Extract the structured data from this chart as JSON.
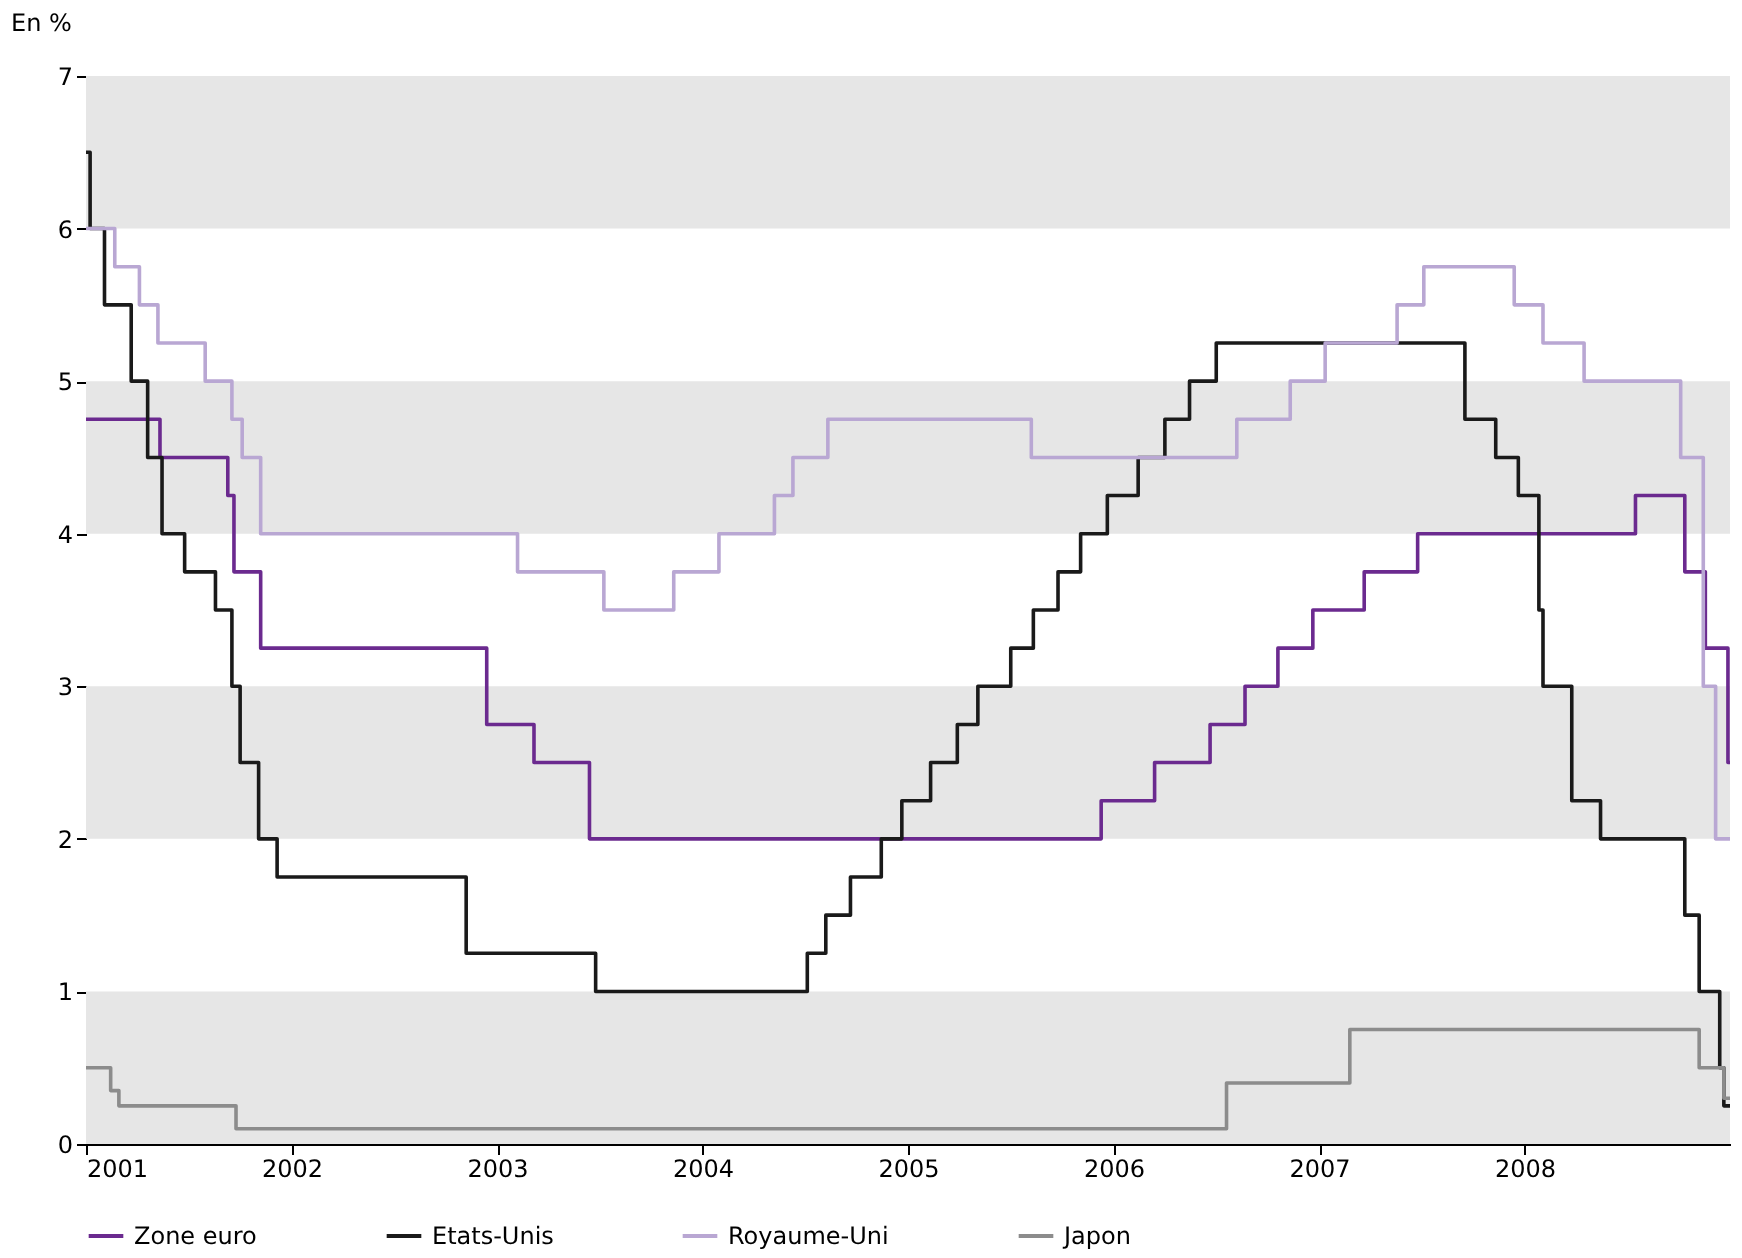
{
  "chart_data": {
    "type": "step",
    "ylabel": "En %",
    "xlim": [
      2001,
      2009
    ],
    "xticks": [
      2001,
      2002,
      2003,
      2004,
      2005,
      2006,
      2007,
      2008
    ],
    "ylim": [
      0,
      7
    ],
    "yticks": [
      0,
      1,
      2,
      3,
      4,
      5,
      6,
      7
    ],
    "grid": false,
    "legend": "bottom",
    "line_style": "solid",
    "marker": "none",
    "bands": [
      {
        "axis": "y",
        "from": 0,
        "to": 1,
        "color": "#e6e6e6"
      },
      {
        "axis": "y",
        "from": 2,
        "to": 3,
        "color": "#e6e6e6"
      },
      {
        "axis": "y",
        "from": 4,
        "to": 5,
        "color": "#e6e6e6"
      },
      {
        "axis": "y",
        "from": 6,
        "to": 7,
        "color": "#e6e6e6"
      }
    ],
    "series": [
      {
        "name": "Zone euro",
        "color": "#6b2a8f",
        "x": [
          2001,
          2001.36,
          2001.69,
          2001.72,
          2001.85,
          2002.95,
          2003.18,
          2003.45,
          2005.94,
          2006.2,
          2006.47,
          2006.64,
          2006.8,
          2006.97,
          2007.22,
          2007.48,
          2008.54,
          2008.78,
          2008.88,
          2008.99,
          2009
        ],
        "values": [
          4.75,
          4.5,
          4.25,
          3.75,
          3.25,
          2.75,
          2.5,
          2.0,
          2.25,
          2.5,
          2.75,
          3.0,
          3.25,
          3.5,
          3.75,
          4.0,
          4.25,
          3.75,
          3.25,
          2.5,
          2.5
        ]
      },
      {
        "name": "Etats-Unis",
        "color": "#1a1a1a",
        "x": [
          2001,
          2001.02,
          2001.09,
          2001.22,
          2001.3,
          2001.37,
          2001.48,
          2001.63,
          2001.71,
          2001.75,
          2001.84,
          2001.93,
          2002.85,
          2003.48,
          2004.51,
          2004.6,
          2004.72,
          2004.87,
          2004.97,
          2005.11,
          2005.24,
          2005.34,
          2005.5,
          2005.61,
          2005.73,
          2005.84,
          2005.97,
          2006.12,
          2006.25,
          2006.37,
          2006.5,
          2007.71,
          2007.86,
          2007.97,
          2008.07,
          2008.09,
          2008.23,
          2008.37,
          2008.78,
          2008.85,
          2008.95,
          2008.97,
          2009
        ],
        "values": [
          6.5,
          6.0,
          5.5,
          5.0,
          4.5,
          4.0,
          3.75,
          3.5,
          3.0,
          2.5,
          2.0,
          1.75,
          1.25,
          1.0,
          1.25,
          1.5,
          1.75,
          2.0,
          2.25,
          2.5,
          2.75,
          3.0,
          3.25,
          3.5,
          3.75,
          4.0,
          4.25,
          4.5,
          4.75,
          5.0,
          5.25,
          4.75,
          4.5,
          4.25,
          3.5,
          3.0,
          2.25,
          2.0,
          1.5,
          1.0,
          0.5,
          0.25,
          0.25
        ]
      },
      {
        "name": "Royaume-Uni",
        "color": "#b9a7d3",
        "x": [
          2001,
          2001.14,
          2001.26,
          2001.35,
          2001.58,
          2001.71,
          2001.76,
          2001.85,
          2003.1,
          2003.52,
          2003.86,
          2004.08,
          2004.35,
          2004.44,
          2004.61,
          2005.6,
          2006.6,
          2006.86,
          2007.03,
          2007.38,
          2007.51,
          2007.95,
          2008.09,
          2008.29,
          2008.76,
          2008.87,
          2008.93,
          2009
        ],
        "values": [
          6.0,
          5.75,
          5.5,
          5.25,
          5.0,
          4.75,
          4.5,
          4.0,
          3.75,
          3.5,
          3.75,
          4.0,
          4.25,
          4.5,
          4.75,
          4.5,
          4.75,
          5.0,
          5.25,
          5.5,
          5.75,
          5.5,
          5.25,
          5.0,
          4.5,
          3.0,
          2.0,
          2.0
        ]
      },
      {
        "name": "Japon",
        "color": "#8c8c8c",
        "x": [
          2001,
          2001.12,
          2001.16,
          2001.73,
          2006.55,
          2007.15,
          2008.85,
          2008.97,
          2009
        ],
        "values": [
          0.5,
          0.35,
          0.25,
          0.1,
          0.4,
          0.75,
          0.5,
          0.3,
          0.3
        ]
      }
    ]
  }
}
